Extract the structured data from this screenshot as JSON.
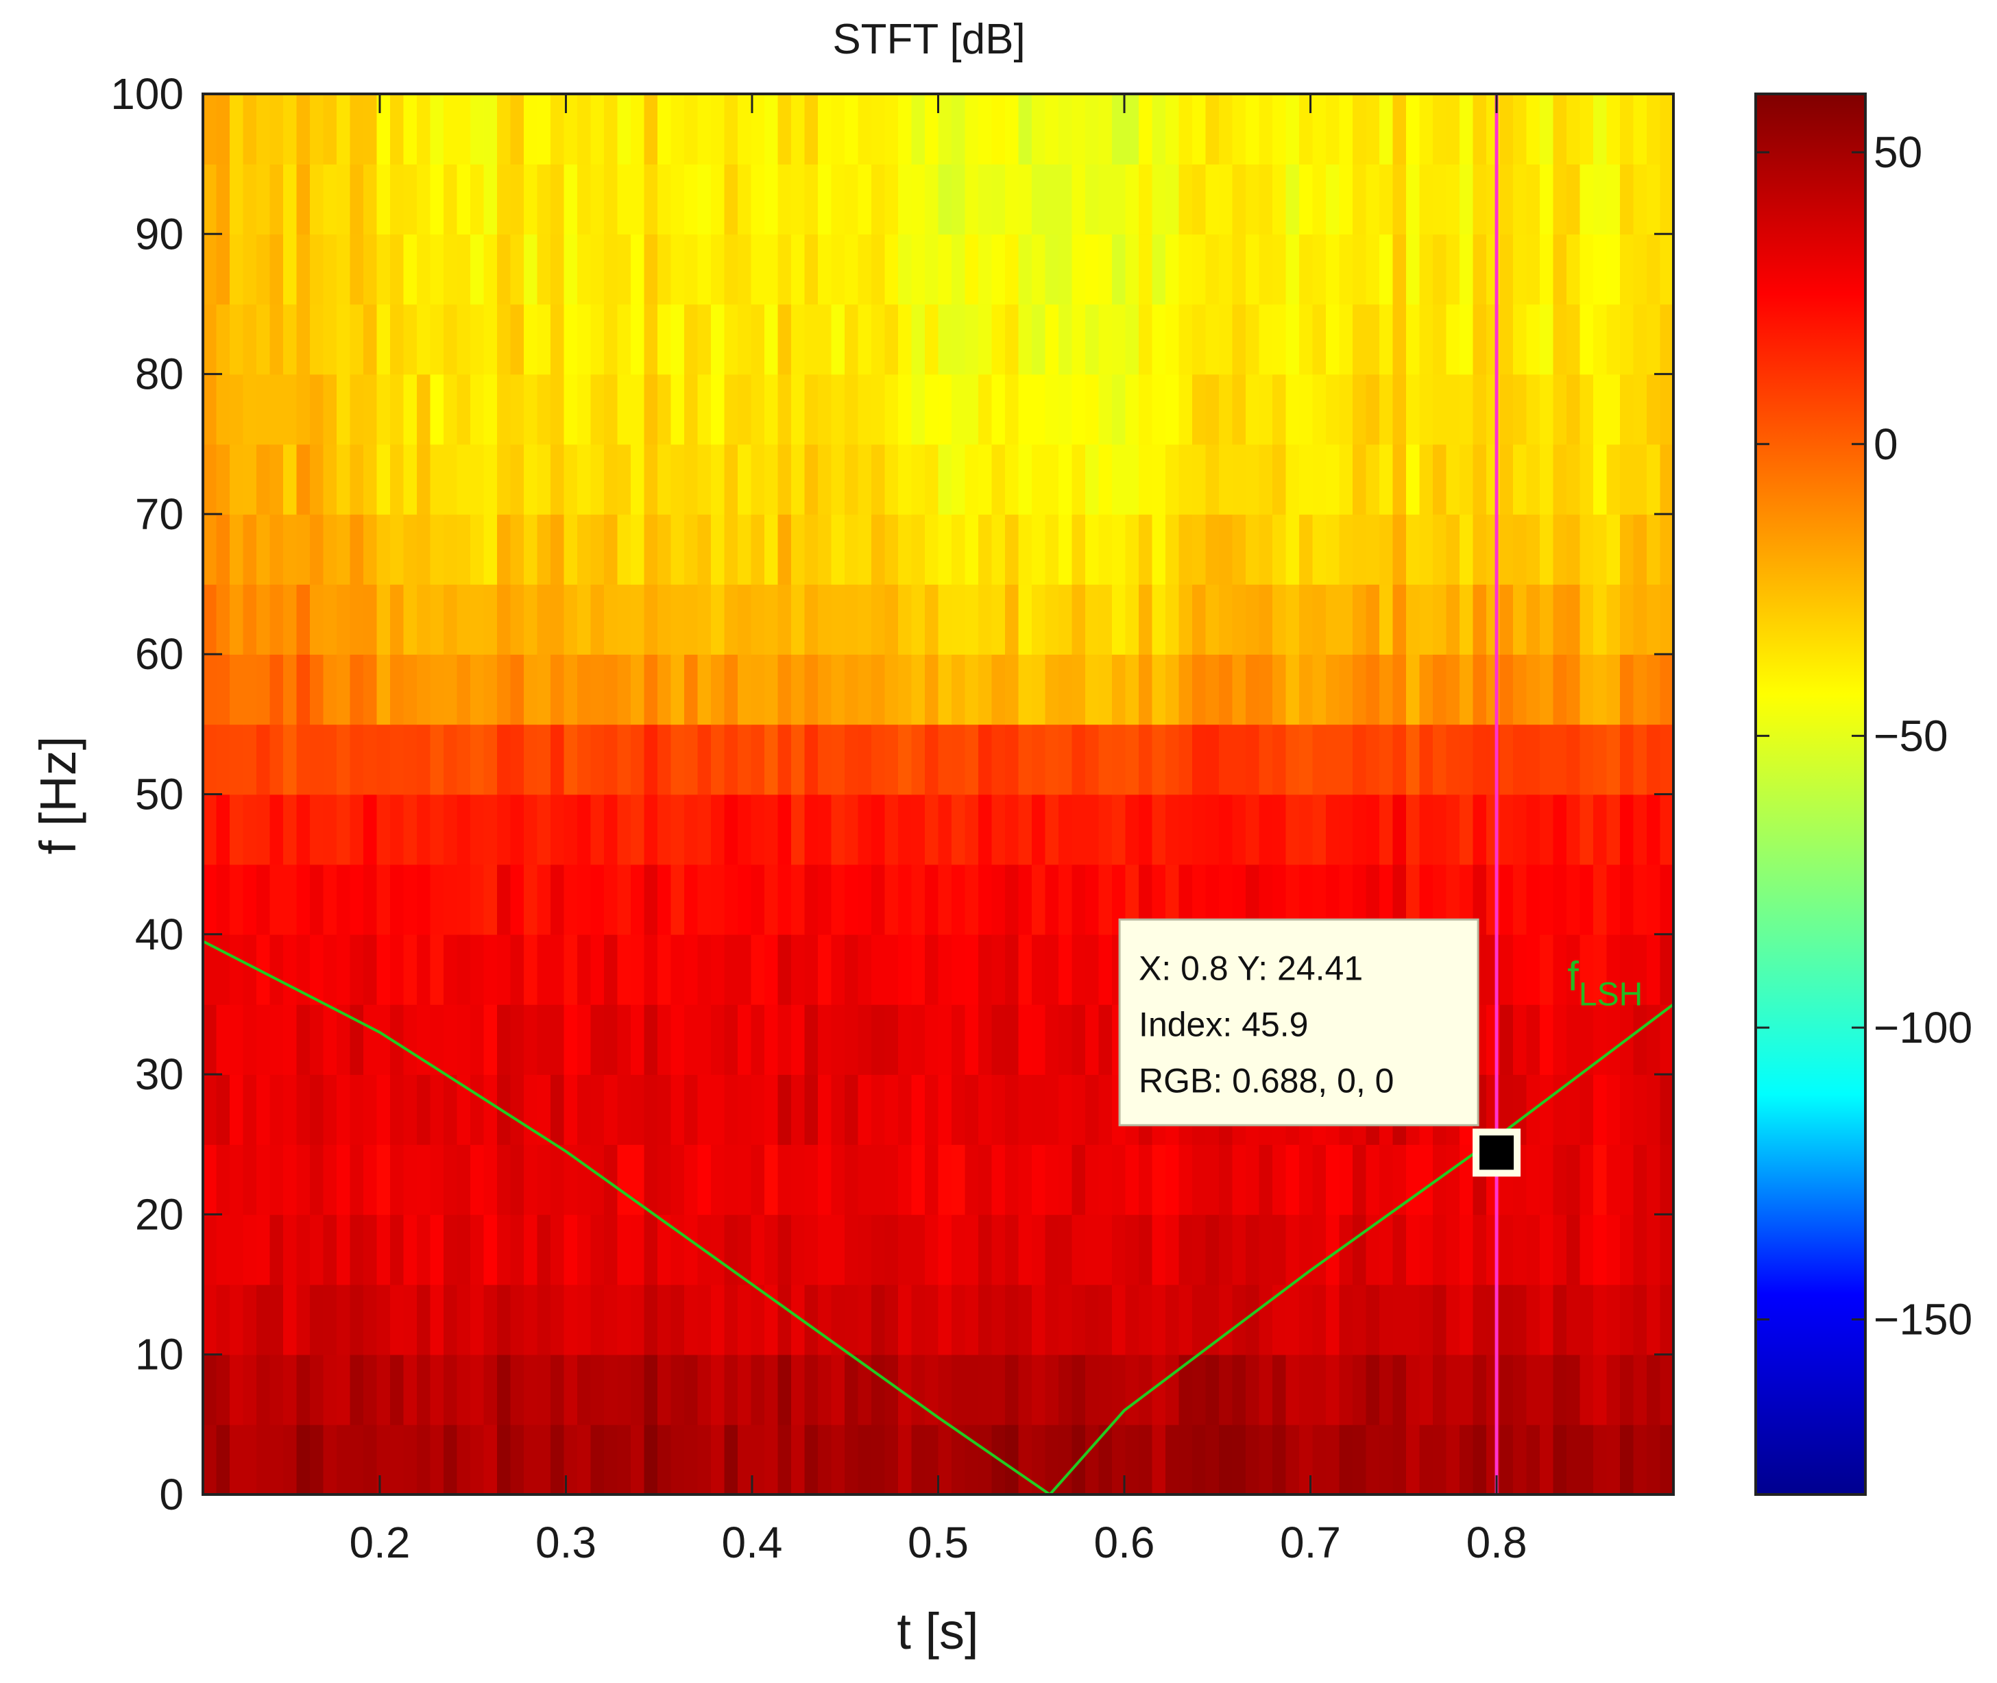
{
  "chart_data": {
    "type": "heatmap",
    "title": "STFT [dB]",
    "xlabel": "t [s]",
    "ylabel": "f [Hz]",
    "xlim": [
      0.105,
      0.895
    ],
    "ylim": [
      0,
      100
    ],
    "x_ticks": [
      0.2,
      0.3,
      0.4,
      0.5,
      0.6,
      0.7,
      0.8
    ],
    "y_ticks": [
      0,
      10,
      20,
      30,
      40,
      50,
      60,
      70,
      80,
      90,
      100
    ],
    "colorbar": {
      "colormap": "jet",
      "range": [
        -180,
        60
      ],
      "ticks": [
        50,
        0,
        -50,
        -100,
        -150
      ]
    },
    "colormap_stops": [
      "#00008f",
      "#0000ff",
      "#00ffff",
      "#80ff80",
      "#ffff00",
      "#ff8000",
      "#ff0000",
      "#800000"
    ],
    "band_levels_db": [
      {
        "f": [
          0,
          5
        ],
        "db": 50
      },
      {
        "f": [
          5,
          10
        ],
        "db": 46
      },
      {
        "f": [
          10,
          15
        ],
        "db": 38
      },
      {
        "f": [
          15,
          20
        ],
        "db": 34
      },
      {
        "f": [
          20,
          25
        ],
        "db": 31
      },
      {
        "f": [
          25,
          30
        ],
        "db": 33
      },
      {
        "f": [
          30,
          35
        ],
        "db": 32
      },
      {
        "f": [
          35,
          40
        ],
        "db": 29
      },
      {
        "f": [
          40,
          45
        ],
        "db": 25
      },
      {
        "f": [
          45,
          50
        ],
        "db": 20
      },
      {
        "f": [
          50,
          55
        ],
        "db": 8
      },
      {
        "f": [
          55,
          60
        ],
        "db": -14
      },
      {
        "f": [
          60,
          65
        ],
        "db": -22
      },
      {
        "f": [
          65,
          70
        ],
        "db": -28
      },
      {
        "f": [
          70,
          75
        ],
        "db": -32
      },
      {
        "f": [
          75,
          80
        ],
        "db": -34
      },
      {
        "f": [
          80,
          85
        ],
        "db": -36
      },
      {
        "f": [
          85,
          90
        ],
        "db": -37
      },
      {
        "f": [
          90,
          95
        ],
        "db": -38
      },
      {
        "f": [
          95,
          100
        ],
        "db": -38
      }
    ],
    "series": [
      {
        "name": "fLSH",
        "color": "#22cc22",
        "x": [
          0.105,
          0.2,
          0.3,
          0.4,
          0.5,
          0.56,
          0.6,
          0.7,
          0.8,
          0.895
        ],
        "y": [
          39.5,
          33,
          24.5,
          15,
          5.5,
          0,
          6,
          16,
          25.5,
          35
        ]
      }
    ],
    "annotations": {
      "cursor_line": {
        "x": 0.8,
        "color": "#ff33cc"
      },
      "datatip": {
        "x": 0.8,
        "y": 24.41,
        "lines": [
          "X: 0.8 Y: 24.41",
          "Index: 45.9",
          "RGB: 0.688, 0, 0"
        ]
      },
      "series_label": {
        "main": "f",
        "sub": "LSH",
        "x": 0.838,
        "y": 36
      }
    }
  }
}
